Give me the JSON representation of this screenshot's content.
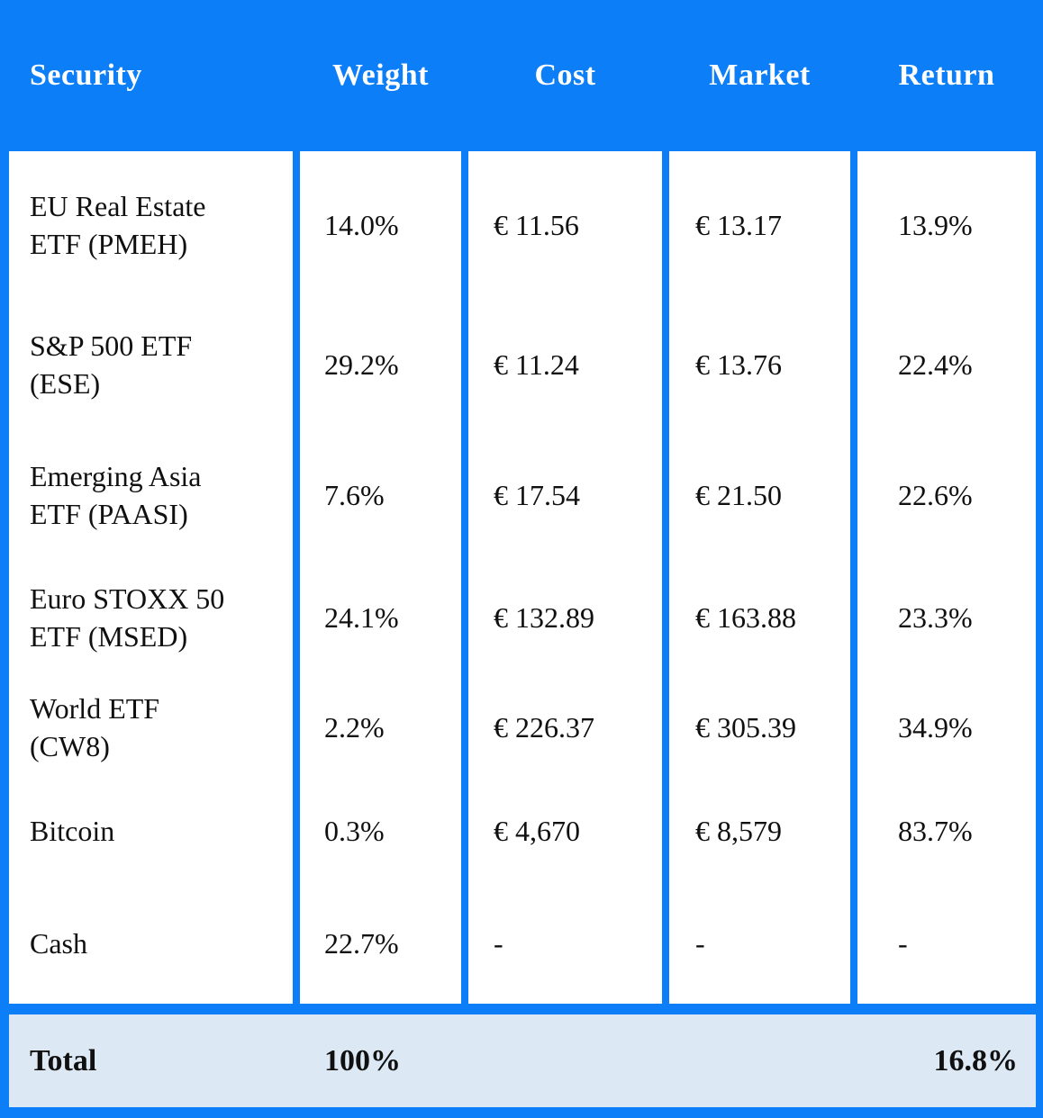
{
  "colors": {
    "accent": "#0b7ef8",
    "cell_bg": "#ffffff",
    "footer_bg": "#dce9f5",
    "header_text": "#ffffff",
    "body_text": "#101010"
  },
  "chart_data": {
    "type": "table",
    "columns": [
      "Security",
      "Weight",
      "Cost",
      "Market",
      "Return"
    ],
    "rows": [
      [
        "EU Real Estate\nETF (PMEH)",
        "14.0%",
        "€ 11.56",
        "€ 13.17",
        "13.9%"
      ],
      [
        "S&P 500 ETF\n(ESE)",
        "29.2%",
        "€ 11.24",
        "€ 13.76",
        "22.4%"
      ],
      [
        "Emerging Asia\nETF (PAASI)",
        "7.6%",
        "€ 17.54",
        "€ 21.50",
        "22.6%"
      ],
      [
        "Euro STOXX 50\nETF (MSED)",
        "24.1%",
        "€ 132.89",
        "€ 163.88",
        "23.3%"
      ],
      [
        "World ETF\n(CW8)",
        "2.2%",
        "€ 226.37",
        "€ 305.39",
        "34.9%"
      ],
      [
        "Bitcoin",
        "0.3%",
        "€ 4,670",
        "€ 8,579",
        "83.7%"
      ],
      [
        "Cash",
        "22.7%",
        "-",
        "-",
        "-"
      ]
    ],
    "total_row": {
      "label": "Total",
      "weight": "100%",
      "return": "16.8%"
    },
    "layout_hints": {
      "header_position": "top",
      "grid": "blue gutters between white column blocks",
      "currency": "shown inline as € in cell values"
    }
  }
}
